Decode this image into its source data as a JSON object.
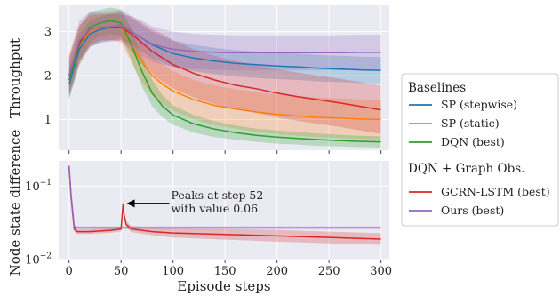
{
  "chart_data": [
    {
      "id": "throughput",
      "type": "line",
      "ylabel": "Throughput",
      "xlim": [
        -10,
        308
      ],
      "ylim": [
        0.3,
        3.6
      ],
      "yticks": [
        1,
        2,
        3
      ],
      "grid": true,
      "x": [
        0,
        10,
        20,
        30,
        40,
        50,
        60,
        70,
        80,
        90,
        100,
        120,
        140,
        160,
        180,
        200,
        220,
        240,
        260,
        280,
        300
      ],
      "series": [
        {
          "name": "SP (stepwise)",
          "color": "#1f77b4",
          "values": [
            1.8,
            2.6,
            2.95,
            3.05,
            3.1,
            3.15,
            3.0,
            2.85,
            2.7,
            2.6,
            2.5,
            2.4,
            2.33,
            2.28,
            2.25,
            2.22,
            2.2,
            2.17,
            2.15,
            2.13,
            2.12
          ],
          "band": [
            0.35,
            0.35,
            0.3,
            0.3,
            0.3,
            0.3,
            0.3,
            0.3,
            0.3,
            0.3,
            0.3,
            0.3,
            0.3,
            0.3,
            0.3,
            0.3,
            0.3,
            0.3,
            0.3,
            0.3,
            0.3
          ]
        },
        {
          "name": "SP (static)",
          "color": "#ff7f0e",
          "values": [
            2.0,
            2.7,
            3.0,
            3.1,
            3.12,
            3.1,
            2.7,
            2.3,
            2.0,
            1.8,
            1.65,
            1.45,
            1.32,
            1.24,
            1.17,
            1.12,
            1.08,
            1.05,
            1.03,
            1.01,
            1.0
          ],
          "band": [
            0.45,
            0.45,
            0.35,
            0.3,
            0.3,
            0.35,
            0.4,
            0.45,
            0.45,
            0.45,
            0.45,
            0.45,
            0.45,
            0.45,
            0.45,
            0.45,
            0.45,
            0.45,
            0.45,
            0.45,
            0.45
          ]
        },
        {
          "name": "DQN (best)",
          "color": "#2ca02c",
          "values": [
            1.9,
            2.7,
            3.1,
            3.2,
            3.25,
            3.2,
            2.7,
            2.1,
            1.6,
            1.3,
            1.1,
            0.9,
            0.78,
            0.7,
            0.64,
            0.6,
            0.57,
            0.54,
            0.52,
            0.5,
            0.49
          ],
          "band": [
            0.4,
            0.4,
            0.35,
            0.3,
            0.3,
            0.3,
            0.35,
            0.35,
            0.3,
            0.25,
            0.22,
            0.2,
            0.18,
            0.16,
            0.15,
            0.15,
            0.14,
            0.14,
            0.13,
            0.13,
            0.13
          ]
        },
        {
          "name": "GCRN-LSTM (best)",
          "color": "#d62728",
          "values": [
            2.0,
            2.75,
            3.05,
            3.1,
            3.1,
            3.1,
            2.95,
            2.75,
            2.55,
            2.4,
            2.25,
            2.05,
            1.9,
            1.78,
            1.7,
            1.6,
            1.52,
            1.45,
            1.38,
            1.3,
            1.22
          ],
          "band": [
            0.4,
            0.4,
            0.35,
            0.3,
            0.3,
            0.3,
            0.4,
            0.45,
            0.5,
            0.55,
            0.55,
            0.55,
            0.55,
            0.55,
            0.55,
            0.55,
            0.55,
            0.55,
            0.55,
            0.55,
            0.55
          ]
        },
        {
          "name": "Ours (best)",
          "color": "#9467bd",
          "values": [
            2.0,
            2.8,
            3.05,
            3.1,
            3.12,
            3.15,
            3.0,
            2.85,
            2.72,
            2.65,
            2.6,
            2.55,
            2.53,
            2.52,
            2.52,
            2.52,
            2.52,
            2.52,
            2.52,
            2.53,
            2.53
          ],
          "band": [
            0.45,
            0.45,
            0.4,
            0.35,
            0.35,
            0.35,
            0.35,
            0.4,
            0.4,
            0.4,
            0.4,
            0.4,
            0.4,
            0.4,
            0.4,
            0.4,
            0.4,
            0.4,
            0.4,
            0.4,
            0.4
          ]
        }
      ]
    },
    {
      "id": "node_state_difference",
      "type": "line",
      "yscale": "log",
      "xlabel": "Episode steps",
      "ylabel": "Node state difference",
      "xlim": [
        -10,
        308
      ],
      "ylim": [
        0.01,
        0.22
      ],
      "yticks": [
        {
          "value": 0.01,
          "label_base": "10",
          "label_exp": "−2"
        },
        {
          "value": 0.1,
          "label_base": "10",
          "label_exp": "−1"
        }
      ],
      "xticks": [
        0,
        50,
        100,
        150,
        200,
        250,
        300
      ],
      "grid": true,
      "x": [
        0,
        2,
        5,
        8,
        20,
        40,
        50,
        51,
        52,
        53,
        55,
        60,
        80,
        100,
        150,
        200,
        250,
        300
      ],
      "series": [
        {
          "name": "GCRN-LSTM (best)",
          "color": "#d62728",
          "values": [
            0.18,
            0.07,
            0.026,
            0.024,
            0.024,
            0.025,
            0.026,
            0.04,
            0.058,
            0.04,
            0.03,
            0.026,
            0.024,
            0.023,
            0.022,
            0.021,
            0.02,
            0.019
          ],
          "band_ratio": [
            1.05,
            1.05,
            1.08,
            1.08,
            1.08,
            1.08,
            1.08,
            1.08,
            1.08,
            1.08,
            1.1,
            1.1,
            1.12,
            1.15,
            1.18,
            1.2,
            1.2,
            1.2
          ]
        },
        {
          "name": "Ours (best)",
          "color": "#9467bd",
          "values": [
            0.19,
            0.075,
            0.028,
            0.027,
            0.027,
            0.027,
            0.027,
            0.027,
            0.027,
            0.027,
            0.027,
            0.027,
            0.027,
            0.027,
            0.027,
            0.027,
            0.027,
            0.027
          ],
          "band_ratio": [
            1.04,
            1.04,
            1.05,
            1.05,
            1.05,
            1.05,
            1.05,
            1.05,
            1.05,
            1.05,
            1.05,
            1.05,
            1.05,
            1.05,
            1.05,
            1.05,
            1.05,
            1.05
          ]
        }
      ],
      "annotation": {
        "lines": [
          "Peaks at step 52",
          "with value 0.06"
        ],
        "target_x": 52,
        "target_y": 0.058
      }
    }
  ],
  "legend": {
    "placement": "right",
    "groups": [
      {
        "heading": "Baselines",
        "items": [
          {
            "label": "SP (stepwise)",
            "color": "#1f77b4"
          },
          {
            "label": "SP (static)",
            "color": "#ff7f0e"
          },
          {
            "label": "DQN (best)",
            "color": "#2ca02c"
          }
        ]
      },
      {
        "heading": "DQN + Graph Obs.",
        "items": [
          {
            "label": "GCRN-LSTM (best)",
            "color": "#d62728"
          },
          {
            "label": "Ours (best)",
            "color": "#9467bd"
          }
        ]
      }
    ]
  },
  "colors": {
    "panel_bg": "#eaeaf2",
    "grid": "#ffffff"
  }
}
